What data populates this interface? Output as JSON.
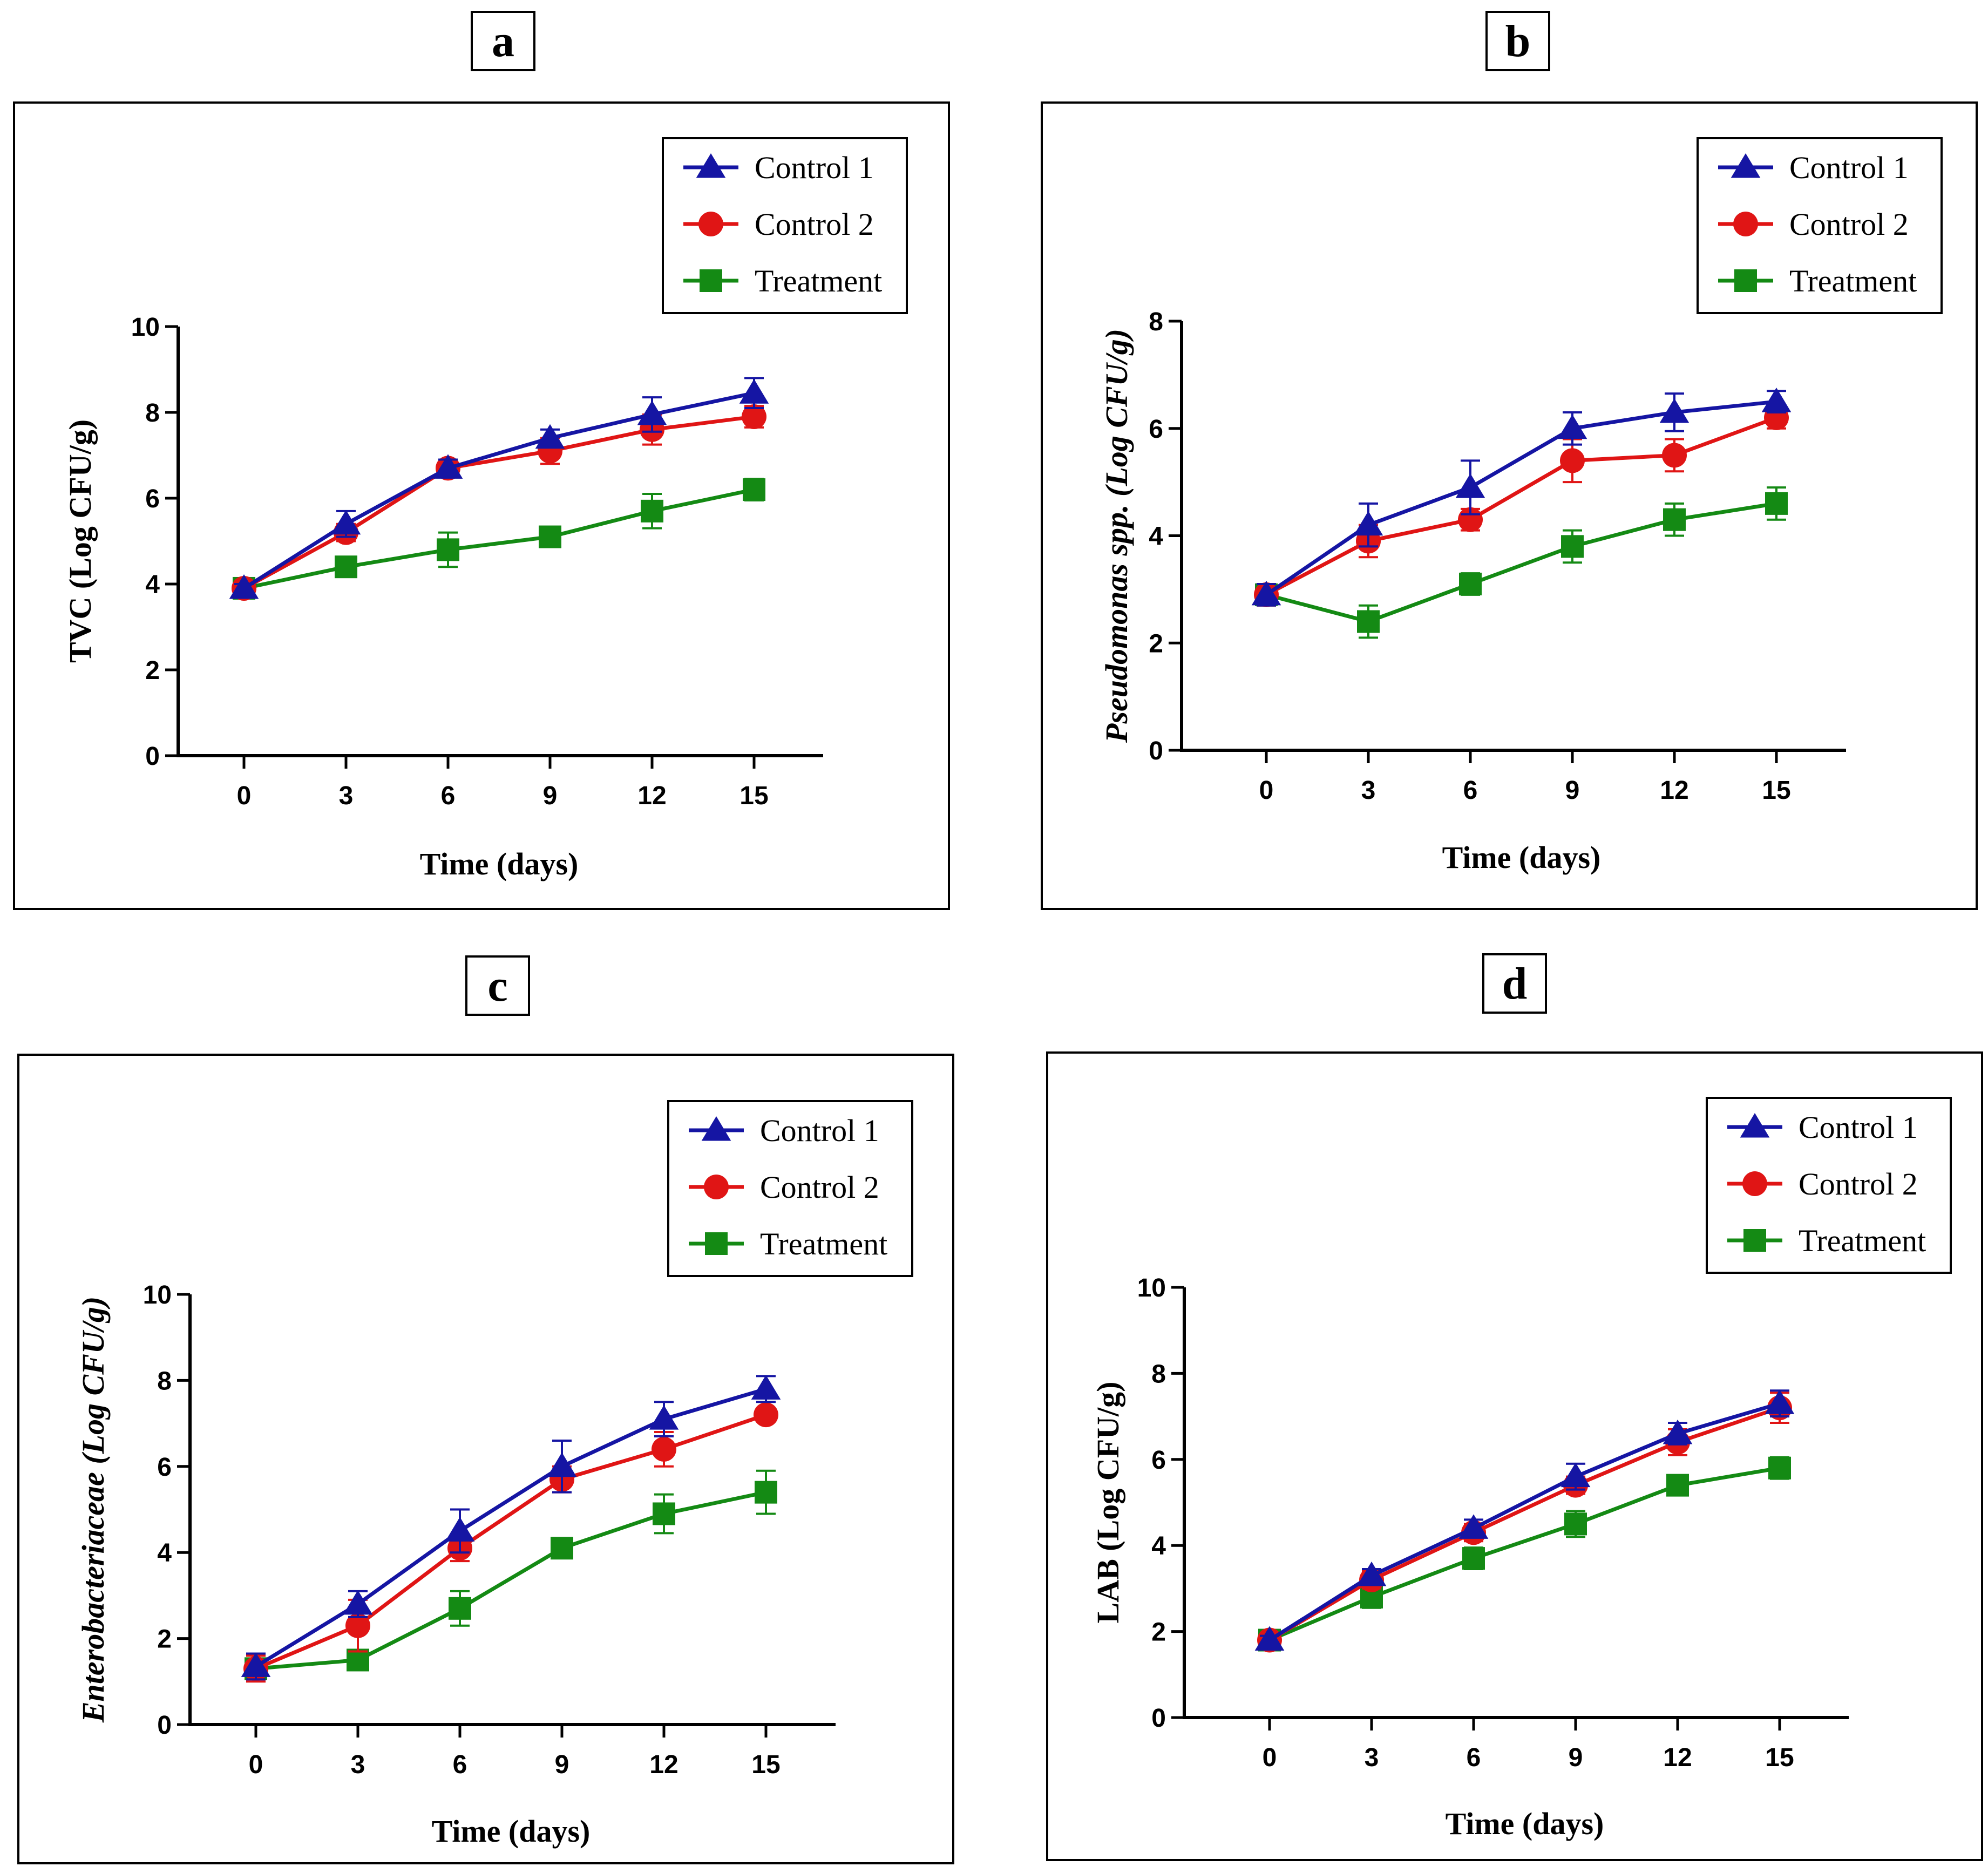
{
  "colors": {
    "control1": "#1515a3",
    "control2": "#e01515",
    "treatment": "#148a14"
  },
  "chart_data": [
    {
      "panel": "a",
      "type": "line",
      "xlabel": "Time (days)",
      "ylabel": "TVC (Log CFU/g)",
      "ylabel_italic": false,
      "x": [
        0,
        3,
        6,
        9,
        12,
        15
      ],
      "ylim": [
        0,
        10
      ],
      "yticks": [
        0,
        2,
        4,
        6,
        8,
        10
      ],
      "legend": "top-right",
      "series": [
        {
          "name": "Control 1",
          "marker": "triangle",
          "color": "#1515a3",
          "values": [
            3.9,
            5.4,
            6.7,
            7.4,
            7.95,
            8.45
          ],
          "err": [
            0.1,
            0.3,
            0.2,
            0.2,
            0.4,
            0.35
          ]
        },
        {
          "name": "Control 2",
          "marker": "circle",
          "color": "#e01515",
          "values": [
            3.9,
            5.2,
            6.7,
            7.1,
            7.6,
            7.9
          ],
          "err": [
            0.1,
            0.2,
            0.2,
            0.3,
            0.35,
            0.25
          ]
        },
        {
          "name": "Treatment",
          "marker": "square",
          "color": "#148a14",
          "values": [
            3.9,
            4.4,
            4.8,
            5.1,
            5.7,
            6.2
          ],
          "err": [
            0.1,
            0.2,
            0.4,
            0.2,
            0.4,
            0.25
          ]
        }
      ]
    },
    {
      "panel": "b",
      "type": "line",
      "xlabel": "Time (days)",
      "ylabel": "Pseudomonas spp. (Log CFU/g)",
      "ylabel_italic": true,
      "x": [
        0,
        3,
        6,
        9,
        12,
        15
      ],
      "ylim": [
        0,
        8
      ],
      "yticks": [
        0,
        2,
        4,
        6,
        8
      ],
      "legend": "top-right",
      "series": [
        {
          "name": "Control 1",
          "marker": "triangle",
          "color": "#1515a3",
          "values": [
            2.9,
            4.2,
            4.9,
            6.0,
            6.3,
            6.5
          ],
          "err": [
            0.2,
            0.4,
            0.5,
            0.3,
            0.35,
            0.2
          ]
        },
        {
          "name": "Control 2",
          "marker": "circle",
          "color": "#e01515",
          "values": [
            2.9,
            3.9,
            4.3,
            5.4,
            5.5,
            6.2
          ],
          "err": [
            0.2,
            0.3,
            0.2,
            0.4,
            0.3,
            0.2
          ]
        },
        {
          "name": "Treatment",
          "marker": "square",
          "color": "#148a14",
          "values": [
            2.9,
            2.4,
            3.1,
            3.8,
            4.3,
            4.6
          ],
          "err": [
            0.2,
            0.3,
            0.2,
            0.3,
            0.3,
            0.3
          ]
        }
      ]
    },
    {
      "panel": "c",
      "type": "line",
      "xlabel": "Time (days)",
      "ylabel": "Enterobacteriaceae (Log CFU/g)",
      "ylabel_italic": true,
      "x": [
        0,
        3,
        6,
        9,
        12,
        15
      ],
      "ylim": [
        0,
        10
      ],
      "yticks": [
        0,
        2,
        4,
        6,
        8,
        10
      ],
      "legend": "top-right",
      "series": [
        {
          "name": "Control 1",
          "marker": "triangle",
          "color": "#1515a3",
          "values": [
            1.35,
            2.8,
            4.5,
            6.0,
            7.1,
            7.8
          ],
          "err": [
            0.3,
            0.3,
            0.5,
            0.6,
            0.4,
            0.3
          ]
        },
        {
          "name": "Control 2",
          "marker": "circle",
          "color": "#e01515",
          "values": [
            1.3,
            2.3,
            4.1,
            5.7,
            6.4,
            7.2
          ],
          "err": [
            0.3,
            0.6,
            0.3,
            0.3,
            0.4,
            0.15
          ]
        },
        {
          "name": "Treatment",
          "marker": "square",
          "color": "#148a14",
          "values": [
            1.3,
            1.5,
            2.7,
            4.1,
            4.9,
            5.4
          ],
          "err": [
            0.2,
            0.2,
            0.4,
            0.2,
            0.45,
            0.5
          ]
        }
      ]
    },
    {
      "panel": "d",
      "type": "line",
      "xlabel": "Time (days)",
      "ylabel": "LAB (Log CFU/g)",
      "ylabel_italic": false,
      "x": [
        0,
        3,
        6,
        9,
        12,
        15
      ],
      "ylim": [
        0,
        10
      ],
      "yticks": [
        0,
        2,
        4,
        6,
        8,
        10
      ],
      "legend": "top-right",
      "series": [
        {
          "name": "Control 1",
          "marker": "triangle",
          "color": "#1515a3",
          "values": [
            1.8,
            3.3,
            4.4,
            5.6,
            6.6,
            7.3
          ],
          "err": [
            0.1,
            0.15,
            0.2,
            0.3,
            0.25,
            0.3
          ]
        },
        {
          "name": "Control 2",
          "marker": "circle",
          "color": "#e01515",
          "values": [
            1.8,
            3.2,
            4.3,
            5.4,
            6.4,
            7.2
          ],
          "err": [
            0.1,
            0.2,
            0.2,
            0.2,
            0.3,
            0.35
          ]
        },
        {
          "name": "Treatment",
          "marker": "square",
          "color": "#148a14",
          "values": [
            1.8,
            2.8,
            3.7,
            4.5,
            5.4,
            5.8
          ],
          "err": [
            0.1,
            0.25,
            0.25,
            0.3,
            0.15,
            0.25
          ]
        }
      ]
    }
  ]
}
